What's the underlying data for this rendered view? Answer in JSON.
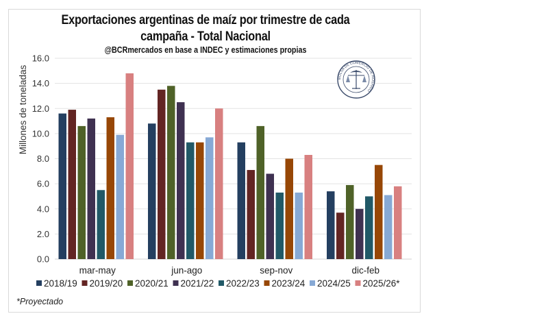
{
  "chart_data": {
    "type": "bar",
    "title": "Exportaciones argentinas de maíz por trimestre de cada campaña - Total Nacional",
    "subtitle": "@BCRmercados  en base a INDEC y estimaciones propias",
    "ylabel": "Millones de toneladas",
    "xlabel": "",
    "ylim": [
      0,
      16
    ],
    "yticks": [
      "0.0",
      "2.0",
      "4.0",
      "6.0",
      "8.0",
      "10.0",
      "12.0",
      "14.0",
      "16.0"
    ],
    "grid": true,
    "legend_placement": "bottom",
    "categories": [
      "mar-may",
      "jun-ago",
      "sep-nov",
      "dic-feb"
    ],
    "series": [
      {
        "name": "2018/19",
        "color": "#243F60",
        "values": [
          11.6,
          10.8,
          9.3,
          5.4
        ]
      },
      {
        "name": "2019/20",
        "color": "#632523",
        "values": [
          11.9,
          13.5,
          7.1,
          3.7
        ]
      },
      {
        "name": "2020/21",
        "color": "#4F6228",
        "values": [
          10.6,
          13.8,
          10.6,
          5.9
        ]
      },
      {
        "name": "2021/22",
        "color": "#3F3151",
        "values": [
          11.2,
          12.5,
          6.8,
          4.0
        ]
      },
      {
        "name": "2022/23",
        "color": "#215967",
        "values": [
          5.5,
          9.3,
          5.3,
          5.0
        ]
      },
      {
        "name": "2023/24",
        "color": "#974706",
        "values": [
          11.3,
          9.3,
          8.0,
          7.5
        ]
      },
      {
        "name": "2024/25",
        "color": "#87A9D5",
        "values": [
          9.9,
          9.7,
          5.3,
          5.1
        ]
      },
      {
        "name": "2025/26*",
        "color": "#D88080",
        "values": [
          14.8,
          12.0,
          8.3,
          5.8
        ]
      }
    ]
  },
  "logo_text": "BOLSA DE COMERCIO DE ROSARIO",
  "footnote": "*Proyectado"
}
